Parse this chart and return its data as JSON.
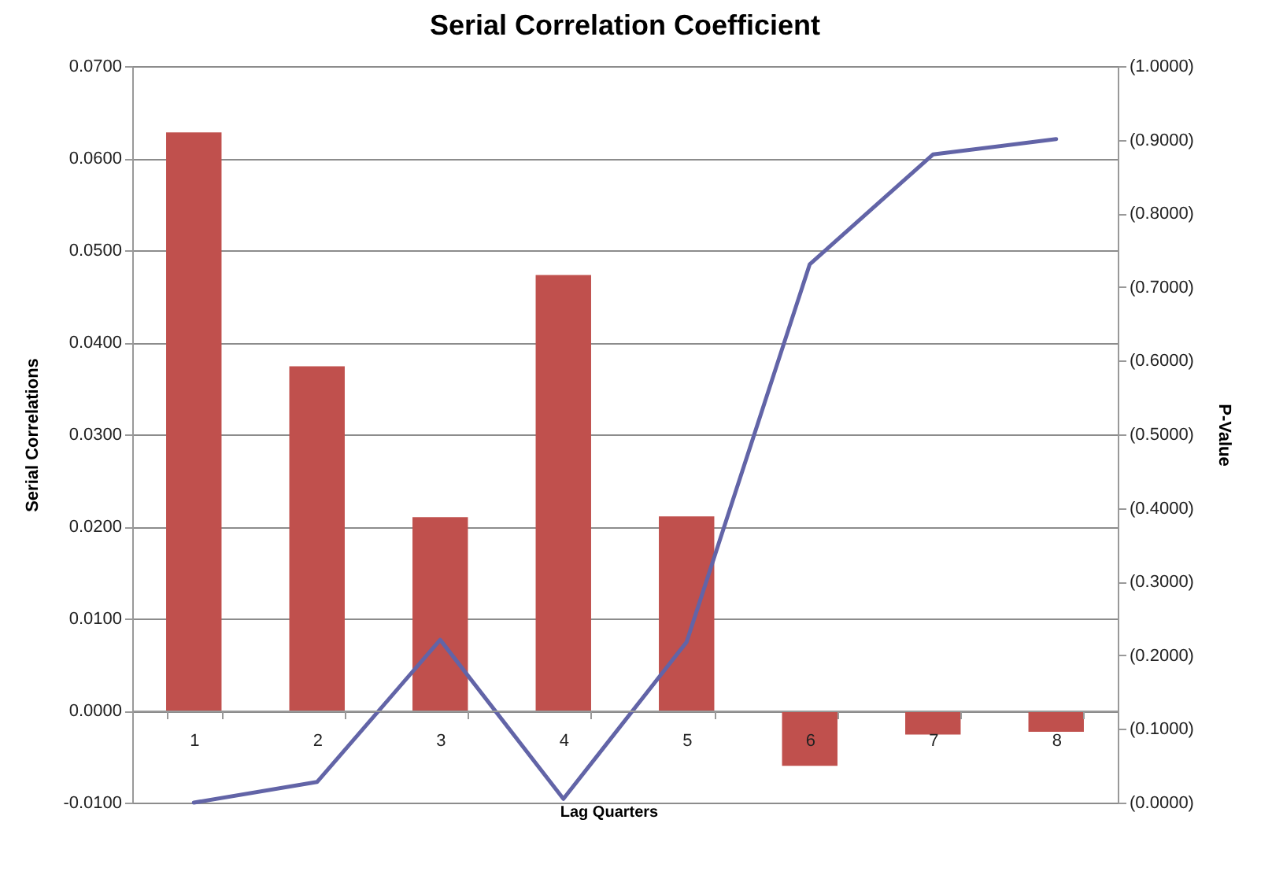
{
  "chart_data": {
    "type": "bar",
    "title": "Serial Correlation Coefficient",
    "xlabel": "Lag Quarters",
    "ylabel": "Serial Correlations",
    "y2label": "P-Value",
    "categories": [
      "1",
      "2",
      "3",
      "4",
      "5",
      "6",
      "7",
      "8"
    ],
    "series": [
      {
        "color": "#c0504d",
        "values": [
          0.0628,
          0.0374,
          0.021,
          0.0473,
          0.0211,
          -0.006,
          -0.0026,
          -0.0023
        ]
      },
      {
        "type": "line",
        "axis": "y2",
        "color": "#6264a7",
        "values": [
          0.0,
          0.028,
          0.221,
          0.005,
          0.218,
          0.731,
          0.88,
          0.901
        ]
      }
    ],
    "ylim": [
      -0.01,
      0.07
    ],
    "yticks": [
      {
        "value": -0.01,
        "label": "-0.0100"
      },
      {
        "value": 0,
        "label": "0.0000"
      },
      {
        "value": 0.01,
        "label": "0.0100"
      },
      {
        "value": 0.02,
        "label": "0.0200"
      },
      {
        "value": 0.03,
        "label": "0.0300"
      },
      {
        "value": 0.04,
        "label": "0.0400"
      },
      {
        "value": 0.05,
        "label": "0.0500"
      },
      {
        "value": 0.06,
        "label": "0.0600"
      },
      {
        "value": 0.07,
        "label": "0.0700"
      }
    ],
    "y2lim": [
      0,
      1
    ],
    "y2ticks": [
      {
        "value": 0,
        "label": "(0.0000)"
      },
      {
        "value": 0.1,
        "label": "(0.1000)"
      },
      {
        "value": 0.2,
        "label": "(0.2000)"
      },
      {
        "value": 0.3,
        "label": "(0.3000)"
      },
      {
        "value": 0.4,
        "label": "(0.4000)"
      },
      {
        "value": 0.5,
        "label": "(0.5000)"
      },
      {
        "value": 0.6,
        "label": "(0.6000)"
      },
      {
        "value": 0.7,
        "label": "(0.7000)"
      },
      {
        "value": 0.8,
        "label": "(0.8000)"
      },
      {
        "value": 0.9,
        "label": "(0.9000)"
      },
      {
        "value": 1,
        "label": "(1.0000)"
      }
    ],
    "grid": "y"
  }
}
